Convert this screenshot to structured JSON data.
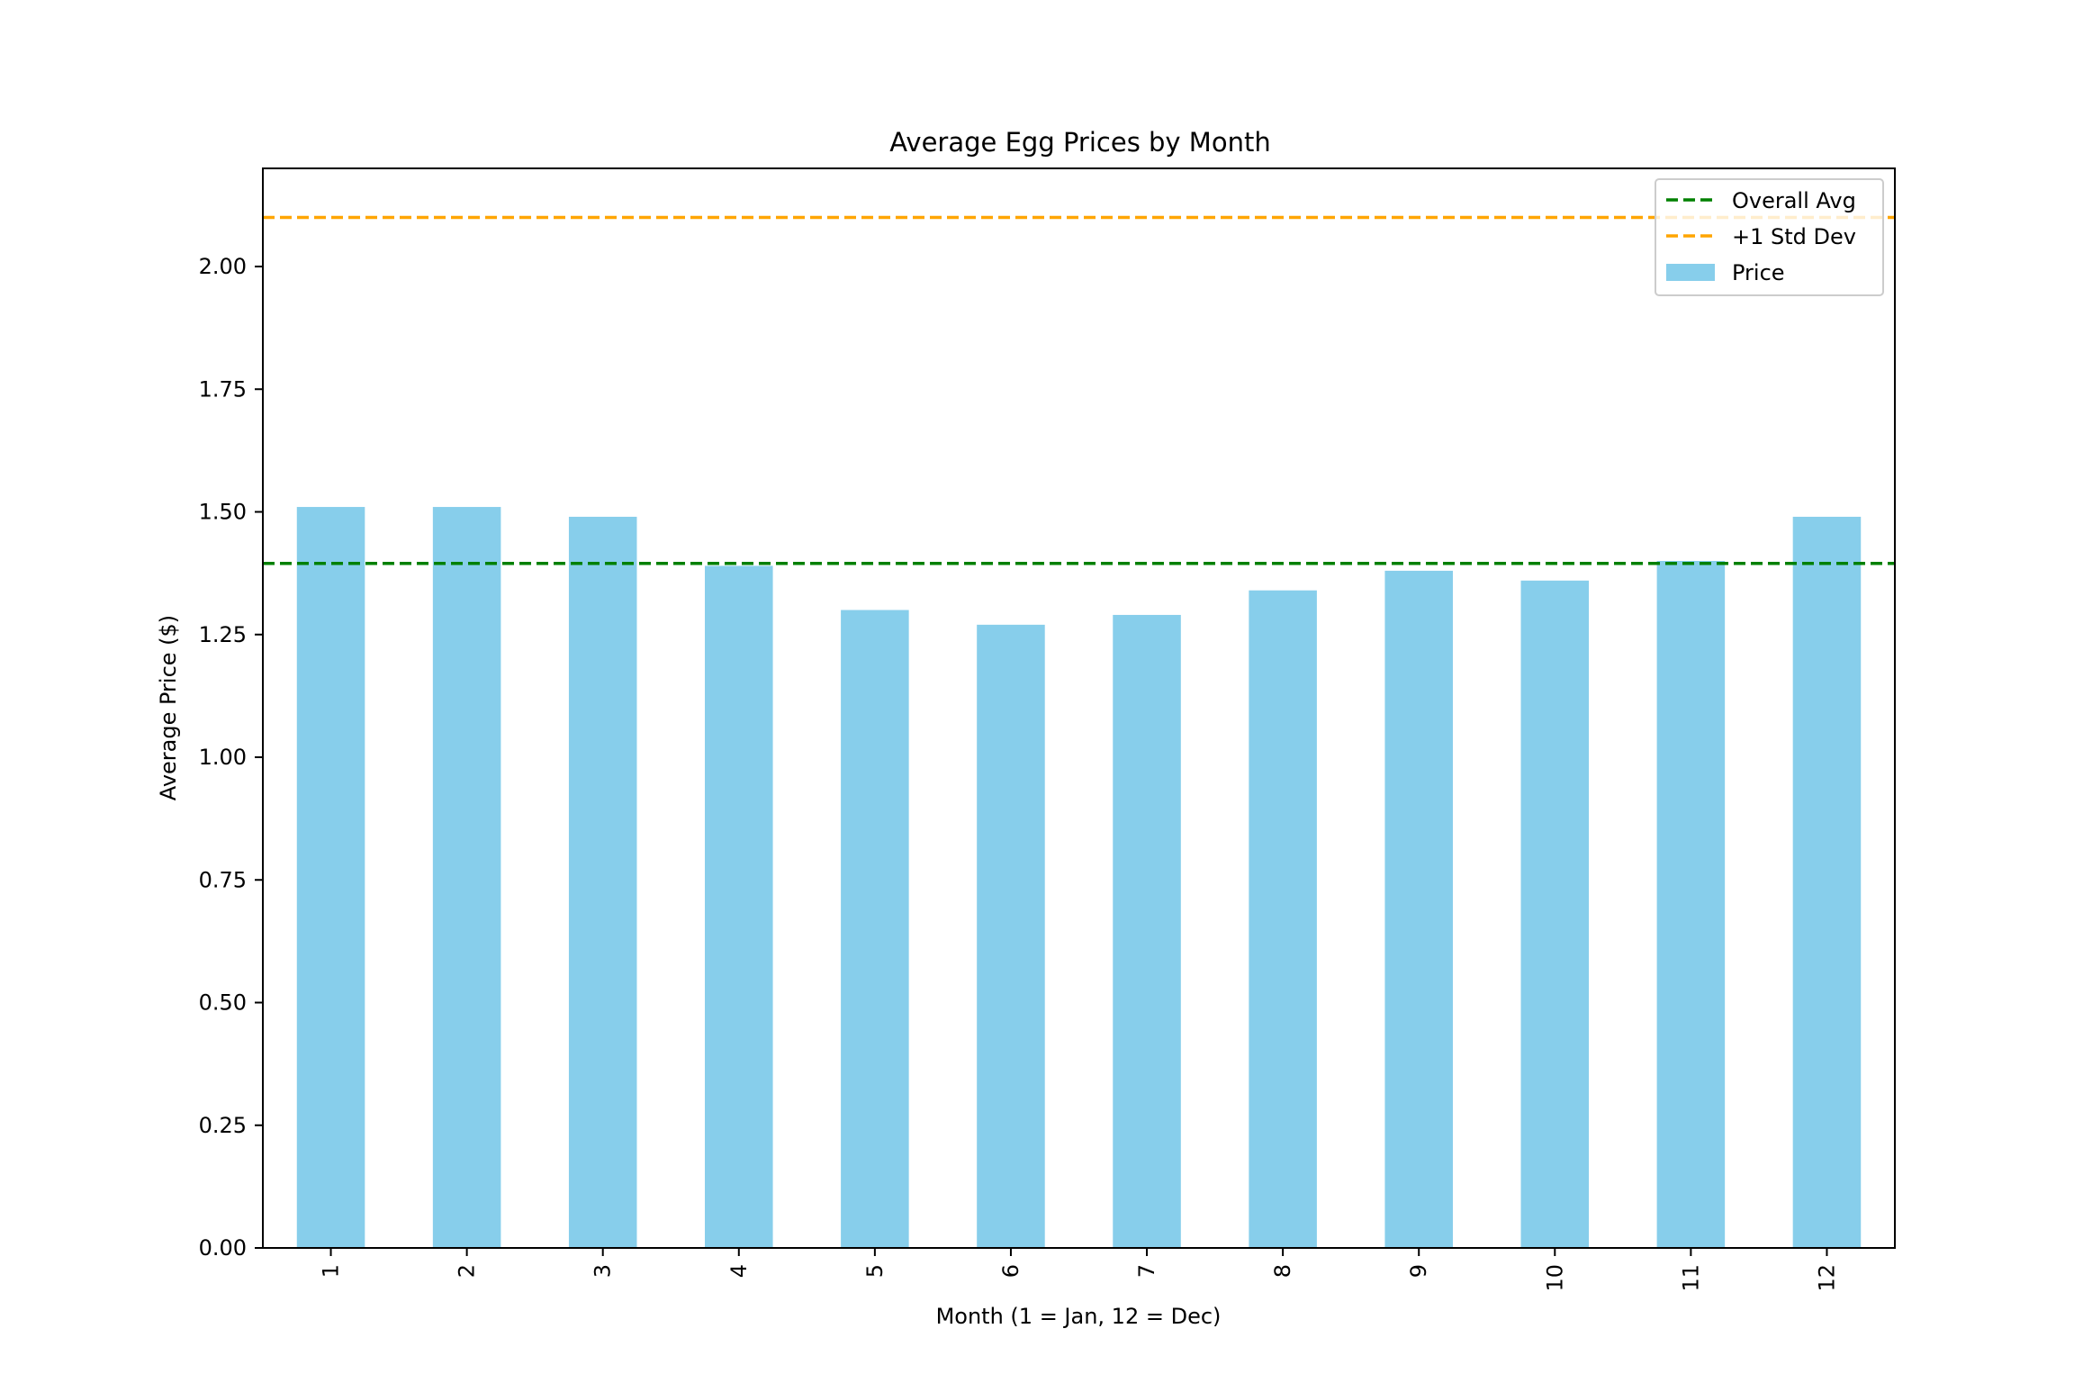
{
  "chart_data": {
    "type": "bar",
    "title": "Average Egg Prices by Month",
    "xlabel": "Month (1 = Jan, 12 = Dec)",
    "ylabel": "Average Price ($)",
    "categories": [
      "1",
      "2",
      "3",
      "4",
      "5",
      "6",
      "7",
      "8",
      "9",
      "10",
      "11",
      "12"
    ],
    "series": [
      {
        "name": "Price",
        "color": "#87ceeb",
        "values": [
          1.51,
          1.51,
          1.49,
          1.39,
          1.3,
          1.27,
          1.29,
          1.34,
          1.38,
          1.36,
          1.4,
          1.49
        ]
      }
    ],
    "reference_lines": [
      {
        "name": "Overall Avg",
        "value": 1.395,
        "color": "#008000",
        "style": "dashed"
      },
      {
        "name": "+1 Std Dev",
        "value": 2.1,
        "color": "#ffa500",
        "style": "dashed"
      }
    ],
    "ylim": [
      0,
      2.2
    ],
    "yticks": [
      "0.00",
      "0.25",
      "0.50",
      "0.75",
      "1.00",
      "1.25",
      "1.50",
      "1.75",
      "2.00"
    ],
    "grid": false,
    "legend_position": "top-right",
    "legend": [
      "Overall Avg",
      "+1 Std Dev",
      "Price"
    ]
  }
}
